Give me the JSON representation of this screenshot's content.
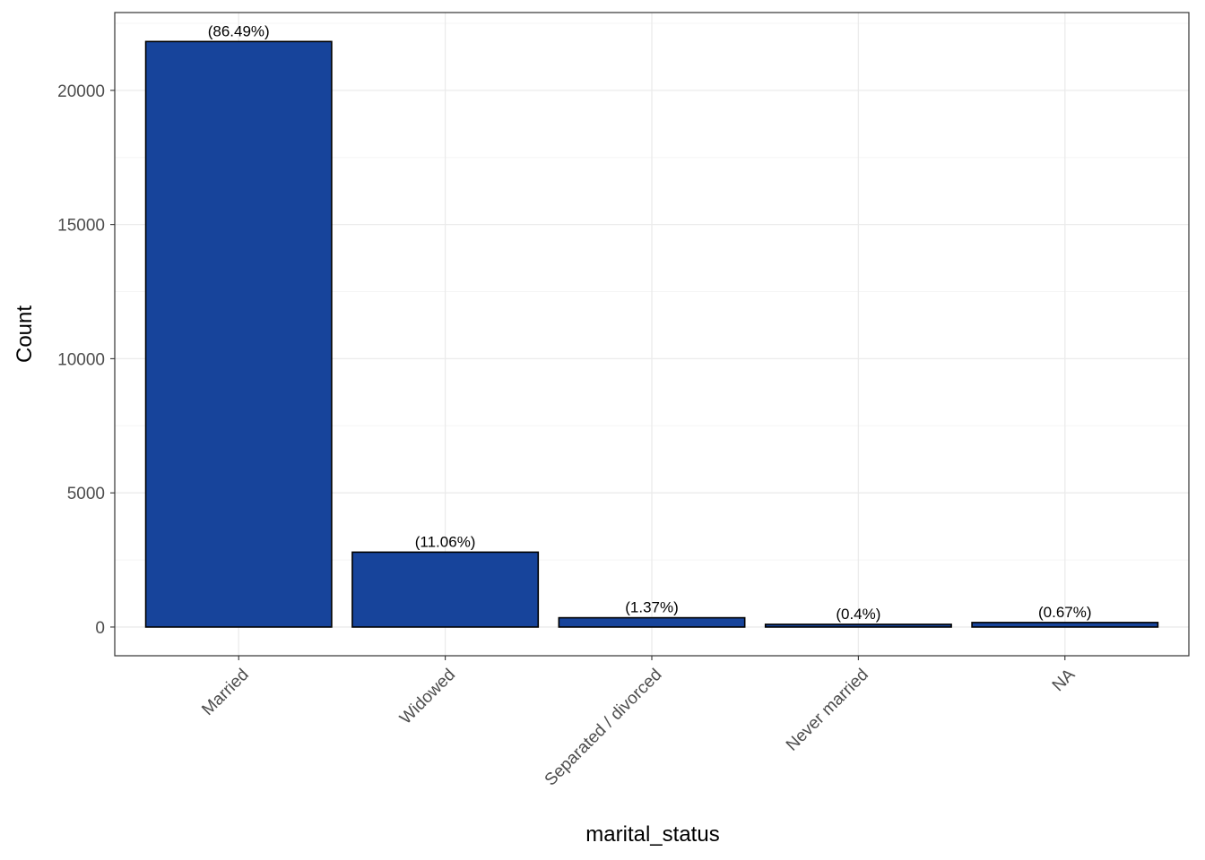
{
  "chart_data": {
    "type": "bar",
    "categories": [
      "Married",
      "Widowed",
      "Separated / divorced",
      "Never married",
      "NA"
    ],
    "values": [
      21820,
      2790,
      346,
      101,
      169
    ],
    "data_labels": [
      "(86.49%)",
      "(11.06%)",
      "(1.37%)",
      "(0.4%)",
      "(0.67%)"
    ],
    "title": "",
    "xlabel": "marital_status",
    "ylabel": "Count",
    "ylim": [
      -1070,
      22900
    ],
    "y_ticks": [
      0,
      5000,
      10000,
      15000,
      20000
    ],
    "y_tick_labels": [
      "0",
      "5000",
      "10000",
      "15000",
      "20000"
    ],
    "x_tick_rotation_deg": 45,
    "grid": true,
    "legend": "none",
    "colors": {
      "bar_fill": "#17449B",
      "bar_outline": "#000000",
      "grid_major": "#EBEBEB",
      "grid_minor": "#F5F5F5",
      "panel_border": "#333333"
    }
  }
}
